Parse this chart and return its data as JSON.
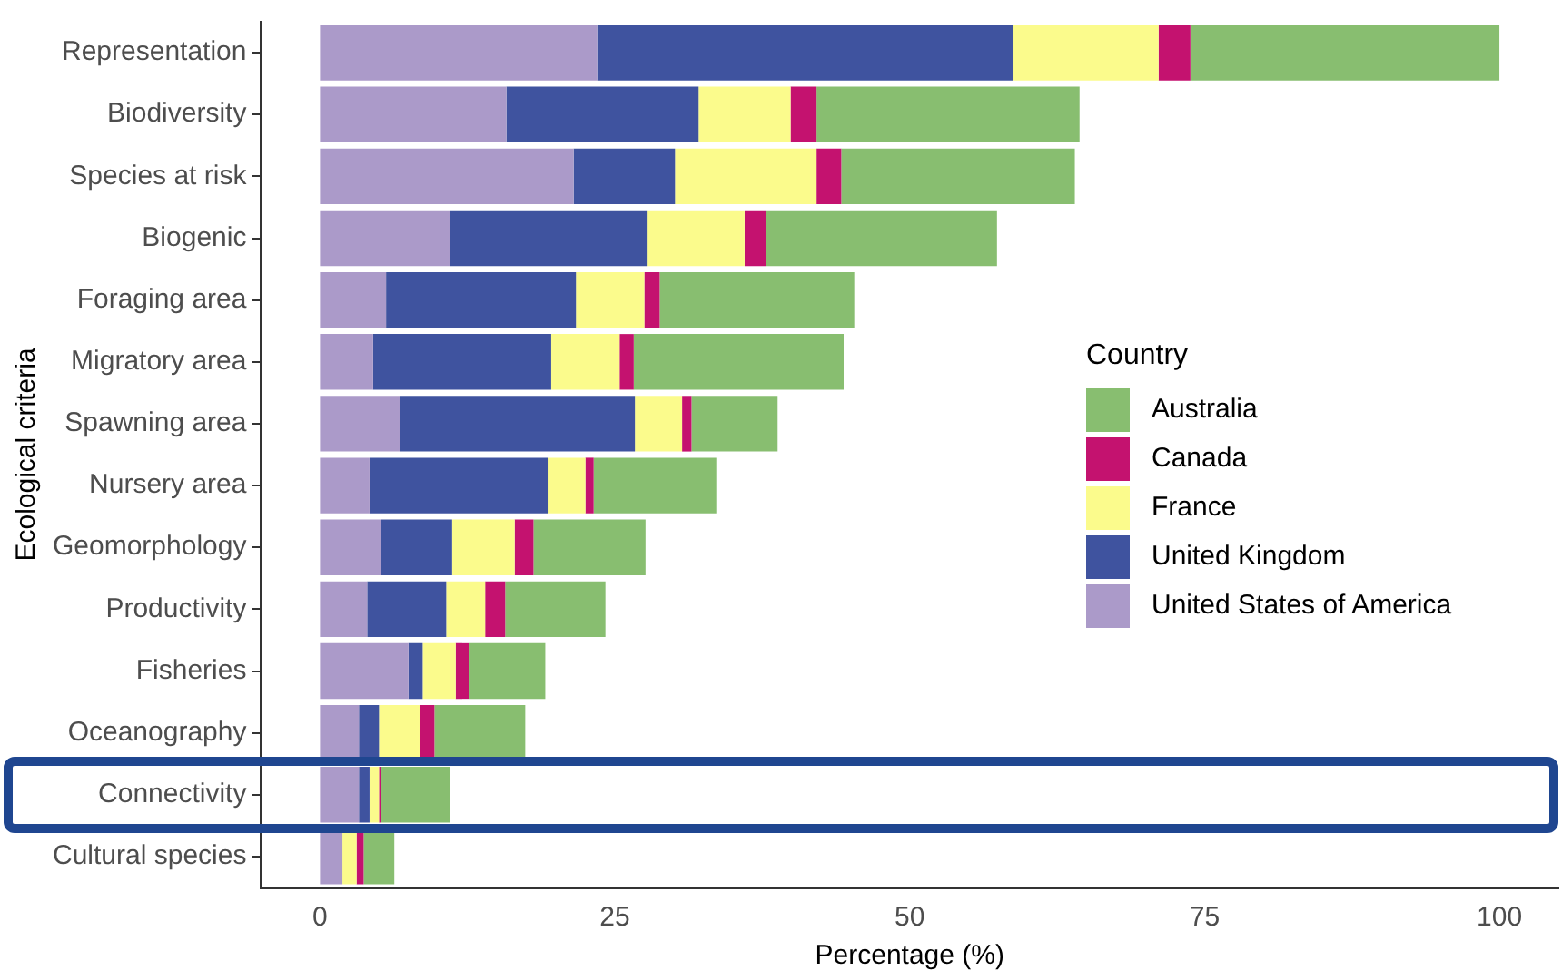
{
  "chart_data": {
    "type": "bar",
    "orientation": "horizontal",
    "stacked": true,
    "xlabel": "Percentage (%)",
    "ylabel": "Ecological criteria",
    "legend_title": "Country",
    "legend": "right",
    "grid": false,
    "categories": [
      "Representation",
      "Biodiversity",
      "Species at risk",
      "Biogenic",
      "Foraging area",
      "Migratory area",
      "Spawning area",
      "Nursery area",
      "Geomorphology",
      "Productivity",
      "Fisheries",
      "Oceanography",
      "Connectivity",
      "Cultural species"
    ],
    "xlim": [
      -5,
      105
    ],
    "xticks": [
      0,
      25,
      50,
      75,
      100
    ],
    "series": [
      {
        "name": "United States of America",
        "color": "#ab9ac9",
        "values": [
          23.5,
          15.8,
          21.5,
          11.0,
          5.6,
          4.5,
          6.8,
          4.2,
          5.2,
          4.0,
          7.5,
          3.3,
          3.3,
          1.9
        ]
      },
      {
        "name": "United Kingdom",
        "color": "#3f539f",
        "values": [
          35.3,
          16.3,
          8.6,
          16.7,
          16.1,
          15.1,
          19.9,
          15.1,
          6.0,
          6.7,
          1.2,
          1.7,
          0.9,
          0
        ]
      },
      {
        "name": "France",
        "color": "#fbfb8c",
        "values": [
          12.3,
          7.8,
          12.0,
          8.3,
          5.8,
          5.8,
          4.0,
          3.2,
          5.3,
          3.3,
          2.8,
          3.5,
          0.8,
          1.2
        ]
      },
      {
        "name": "Canada",
        "color": "#c4126f",
        "values": [
          2.7,
          2.2,
          2.1,
          1.8,
          1.3,
          1.2,
          0.8,
          0.7,
          1.6,
          1.7,
          1.1,
          1.2,
          0.2,
          0.6
        ]
      },
      {
        "name": "Australia",
        "color": "#88be70",
        "values": [
          26.2,
          22.3,
          19.8,
          19.6,
          16.5,
          17.8,
          7.3,
          10.4,
          9.5,
          8.5,
          6.5,
          7.7,
          5.8,
          2.6
        ]
      }
    ]
  }
}
